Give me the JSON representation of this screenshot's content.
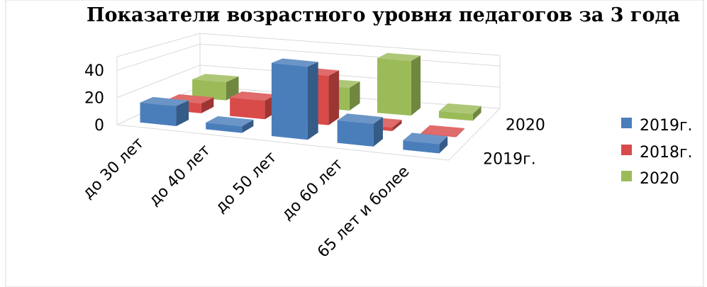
{
  "chart_data": {
    "type": "bar",
    "title": "Показатели возрастного уровня педагогов за 3 года",
    "categories": [
      "до 30 лет",
      "до 40 лет",
      "до 50 лет",
      "до 60 лет",
      "65 лет и более"
    ],
    "depth_labels": [
      "2019г.",
      "2020"
    ],
    "yticks": [
      "0",
      "20",
      "40"
    ],
    "ylim": [
      0,
      50
    ],
    "grid": true,
    "legend_position": "right",
    "series": [
      {
        "name": "2019г.",
        "color": "#4a7ebb",
        "values": [
          15,
          5,
          55,
          17,
          7
        ]
      },
      {
        "name": "2018г.",
        "color": "#d84b49",
        "values": [
          8,
          15,
          40,
          3,
          0
        ]
      },
      {
        "name": "2020",
        "color": "#9bbb59",
        "values": [
          16,
          0,
          20,
          48,
          6
        ]
      }
    ]
  }
}
